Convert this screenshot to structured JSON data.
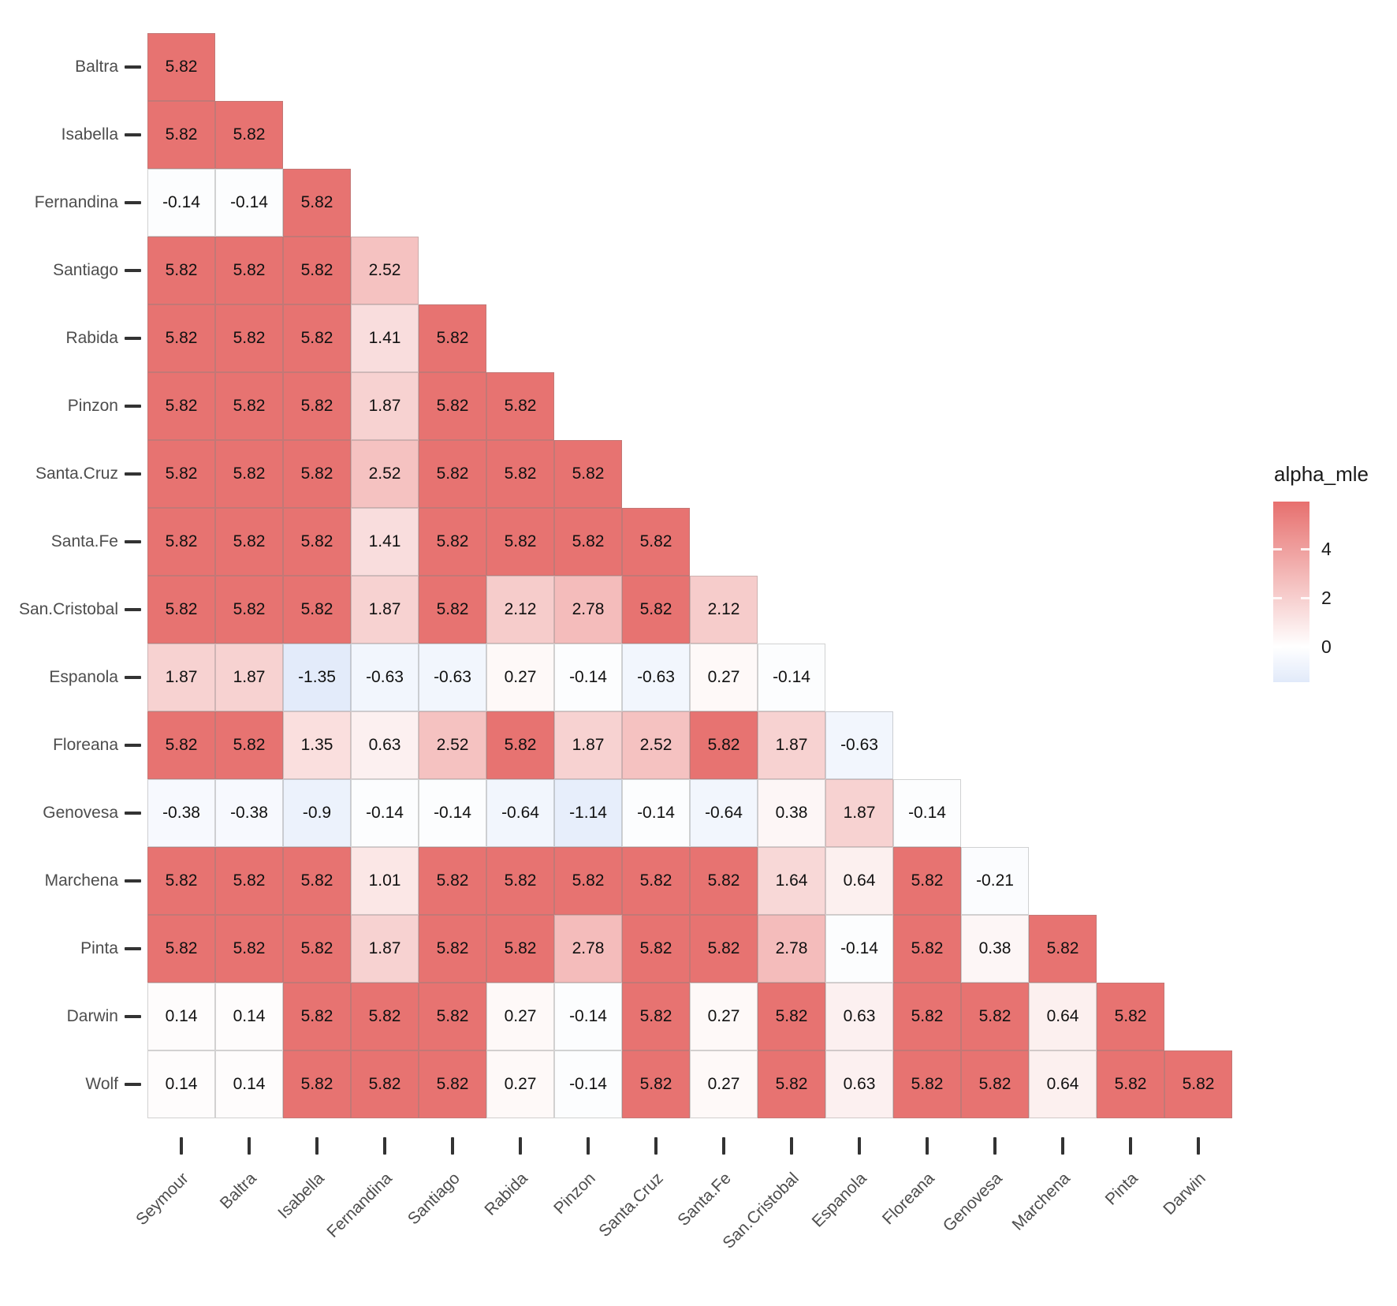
{
  "chart_data": {
    "type": "heatmap",
    "subtype": "lower-triangular-matrix",
    "title": "",
    "legend": {
      "title": "alpha_mle",
      "position": "right",
      "ticks": [
        "4",
        "2",
        "0"
      ],
      "tick_values": [
        4,
        2,
        0
      ]
    },
    "y_labels": [
      "Baltra",
      "Isabella",
      "Fernandina",
      "Santiago",
      "Rabida",
      "Pinzon",
      "Santa.Cruz",
      "Santa.Fe",
      "San.Cristobal",
      "Espanola",
      "Floreana",
      "Genovesa",
      "Marchena",
      "Pinta",
      "Darwin",
      "Wolf"
    ],
    "x_labels": [
      "Seymour",
      "Baltra",
      "Isabella",
      "Fernandina",
      "Santiago",
      "Rabida",
      "Pinzon",
      "Santa.Cruz",
      "Santa.Fe",
      "San.Cristobal",
      "Espanola",
      "Floreana",
      "Genovesa",
      "Marchena",
      "Pinta",
      "Darwin"
    ],
    "x_label_angle": 45,
    "cells": [
      [
        "5.82"
      ],
      [
        "5.82",
        "5.82"
      ],
      [
        "-0.14",
        "-0.14",
        "5.82"
      ],
      [
        "5.82",
        "5.82",
        "5.82",
        "2.52"
      ],
      [
        "5.82",
        "5.82",
        "5.82",
        "1.41",
        "5.82"
      ],
      [
        "5.82",
        "5.82",
        "5.82",
        "1.87",
        "5.82",
        "5.82"
      ],
      [
        "5.82",
        "5.82",
        "5.82",
        "2.52",
        "5.82",
        "5.82",
        "5.82"
      ],
      [
        "5.82",
        "5.82",
        "5.82",
        "1.41",
        "5.82",
        "5.82",
        "5.82",
        "5.82"
      ],
      [
        "5.82",
        "5.82",
        "5.82",
        "1.87",
        "5.82",
        "2.12",
        "2.78",
        "5.82",
        "2.12"
      ],
      [
        "1.87",
        "1.87",
        "-1.35",
        "-0.63",
        "-0.63",
        "0.27",
        "-0.14",
        "-0.63",
        "0.27",
        "-0.14"
      ],
      [
        "5.82",
        "5.82",
        "1.35",
        "0.63",
        "2.52",
        "5.82",
        "1.87",
        "2.52",
        "5.82",
        "1.87",
        "-0.63"
      ],
      [
        "-0.38",
        "-0.38",
        "-0.9",
        "-0.14",
        "-0.14",
        "-0.64",
        "-1.14",
        "-0.14",
        "-0.64",
        "0.38",
        "1.87",
        "-0.14"
      ],
      [
        "5.82",
        "5.82",
        "5.82",
        "1.01",
        "5.82",
        "5.82",
        "5.82",
        "5.82",
        "5.82",
        "1.64",
        "0.64",
        "5.82",
        "-0.21"
      ],
      [
        "5.82",
        "5.82",
        "5.82",
        "1.87",
        "5.82",
        "5.82",
        "2.78",
        "5.82",
        "5.82",
        "2.78",
        "-0.14",
        "5.82",
        "0.38",
        "5.82"
      ],
      [
        "0.14",
        "0.14",
        "5.82",
        "5.82",
        "5.82",
        "0.27",
        "-0.14",
        "5.82",
        "0.27",
        "5.82",
        "0.63",
        "5.82",
        "5.82",
        "0.64",
        "5.82"
      ],
      [
        "0.14",
        "0.14",
        "5.82",
        "5.82",
        "5.82",
        "0.27",
        "-0.14",
        "5.82",
        "0.27",
        "5.82",
        "0.63",
        "5.82",
        "5.82",
        "0.64",
        "5.82",
        "5.82"
      ]
    ],
    "color_scale": {
      "high": "#E7706E",
      "mid": "#FFFFFF",
      "low": "#84A7E9",
      "midpoint": 0,
      "abs_max": 5.94,
      "legend_max": 5.94,
      "legend_min": -1.45
    }
  }
}
